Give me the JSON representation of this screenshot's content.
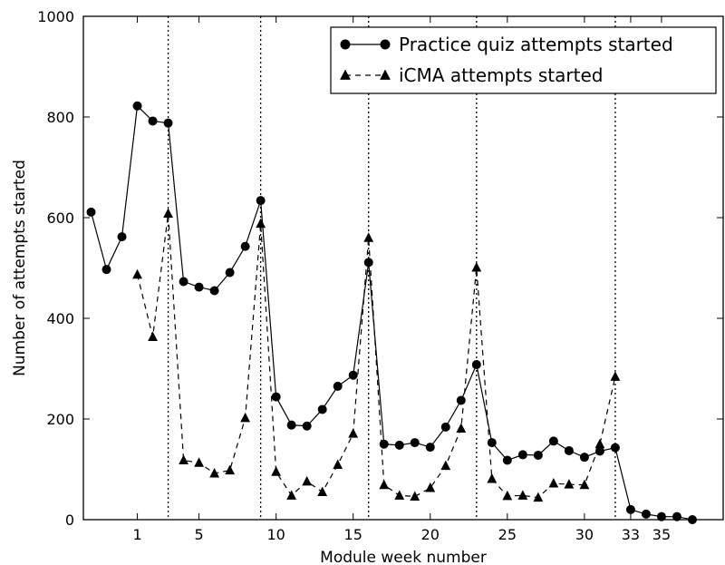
{
  "chart_data": {
    "type": "line",
    "title": "",
    "xlabel": "Module week number",
    "ylabel": "Number of attempts started",
    "xlim": [
      -2.5,
      39
    ],
    "ylim": [
      0,
      1000
    ],
    "x_ticks": [
      1,
      5,
      10,
      15,
      20,
      25,
      30,
      33,
      35
    ],
    "y_ticks": [
      0,
      200,
      400,
      600,
      800,
      1000
    ],
    "vlines": [
      3,
      9,
      16,
      23,
      32
    ],
    "grid": false,
    "legend_position": "top-right",
    "series": [
      {
        "name": "Practice quiz attempts started",
        "style": "solid",
        "marker": "circle",
        "x": [
          -2,
          -1,
          0,
          1,
          2,
          3,
          4,
          5,
          6,
          7,
          8,
          9,
          10,
          11,
          12,
          13,
          14,
          15,
          16,
          17,
          18,
          19,
          20,
          21,
          22,
          23,
          24,
          25,
          26,
          27,
          28,
          29,
          30,
          31,
          32,
          33,
          34,
          35,
          36,
          37
        ],
        "values": [
          611,
          497,
          562,
          822,
          792,
          788,
          473,
          462,
          455,
          491,
          543,
          634,
          244,
          188,
          186,
          219,
          265,
          287,
          511,
          150,
          148,
          153,
          144,
          184,
          237,
          308,
          153,
          118,
          129,
          128,
          156,
          137,
          124,
          136,
          143,
          20,
          11,
          6,
          6,
          0
        ]
      },
      {
        "name": "iCMA attempts started",
        "style": "dashed",
        "marker": "triangle",
        "x": [
          1,
          2,
          3,
          4,
          5,
          6,
          7,
          8,
          9,
          10,
          11,
          12,
          13,
          14,
          15,
          16,
          17,
          18,
          19,
          20,
          21,
          22,
          23,
          24,
          25,
          26,
          27,
          28,
          29,
          30,
          31,
          32
        ],
        "values": [
          487,
          363,
          608,
          118,
          113,
          92,
          98,
          202,
          588,
          95,
          48,
          76,
          55,
          109,
          171,
          560,
          69,
          48,
          46,
          63,
          107,
          181,
          501,
          81,
          47,
          48,
          44,
          72,
          70,
          69,
          150,
          284
        ]
      }
    ]
  }
}
